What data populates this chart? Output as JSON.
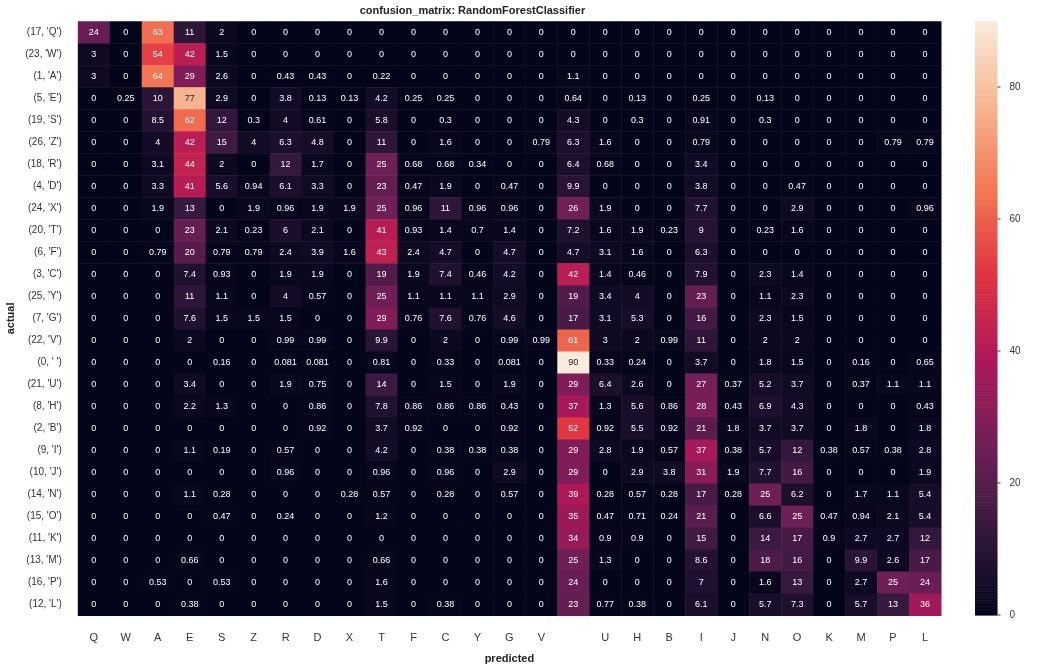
{
  "chart_data": {
    "type": "heatmap",
    "title": "confusion_matrix: RandomForestClassifier",
    "xlabel": "predicted",
    "ylabel": "actual",
    "categories": [
      "Q",
      "W",
      "A",
      "E",
      "S",
      "Z",
      "R",
      "D",
      "X",
      "T",
      "F",
      "C",
      "Y",
      "G",
      "V",
      null,
      "U",
      "H",
      "B",
      "I",
      "J",
      "N",
      "O",
      "K",
      "M",
      "P",
      "L"
    ],
    "y_categories": [
      "(17, 'Q')",
      "(23, 'W')",
      "(1, 'A')",
      "(5, 'E')",
      "(19, 'S')",
      "(26, 'Z')",
      "(18, 'R')",
      "(4, 'D')",
      "(24, 'X')",
      "(20, 'T')",
      "(6, 'F')",
      "(3, 'C')",
      "(25, 'Y')",
      "(7, 'G')",
      "(22, 'V')",
      "(0, ' ')",
      "(21, 'U')",
      "(8, 'H')",
      "(2, 'B')",
      "(9, 'I')",
      "(10, 'J')",
      "(14, 'N')",
      "(15, 'O')",
      "(11, 'K')",
      "(13, 'M')",
      "(16, 'P')",
      "(12, 'L')"
    ],
    "cells": [
      [
        24,
        0,
        63,
        11,
        2,
        0,
        0,
        0,
        0,
        0,
        0,
        0,
        0,
        0,
        0,
        0,
        0,
        0,
        0,
        0,
        0,
        0,
        0,
        0,
        0,
        0,
        0
      ],
      [
        3,
        0,
        54,
        42,
        1.5,
        0,
        0,
        0,
        0,
        0,
        0,
        0,
        0,
        0,
        0,
        0,
        0,
        0,
        0,
        0,
        0,
        0,
        0,
        0,
        0,
        0,
        0
      ],
      [
        3,
        0,
        64,
        29,
        2.6,
        0,
        0.43,
        0.43,
        0,
        0.22,
        0,
        0,
        0,
        0,
        0,
        1.1,
        0,
        0,
        0,
        0,
        0,
        0,
        0,
        0,
        0,
        0,
        0
      ],
      [
        0,
        0.25,
        10,
        77,
        2.9,
        0,
        3.8,
        0.13,
        0.13,
        4.2,
        0.25,
        0.25,
        0,
        0,
        0,
        0.64,
        0,
        0.13,
        0,
        0.25,
        0,
        0.13,
        0,
        0,
        0,
        0,
        0
      ],
      [
        0,
        0,
        8.5,
        62,
        12,
        0.3,
        4,
        0.61,
        0,
        5.8,
        0,
        0.3,
        0,
        0,
        0,
        4.3,
        0,
        0.3,
        0,
        0.91,
        0,
        0.3,
        0,
        0,
        0,
        0,
        0
      ],
      [
        0,
        0,
        4,
        42,
        15,
        4,
        6.3,
        4.8,
        0,
        11,
        0,
        1.6,
        0,
        0,
        0.79,
        6.3,
        1.6,
        0,
        0,
        0.79,
        0,
        0,
        0,
        0,
        0,
        0.79,
        0.79
      ],
      [
        0,
        0,
        3.1,
        44,
        2,
        0,
        12,
        1.7,
        0,
        25,
        0.68,
        0.68,
        0.34,
        0,
        0,
        6.4,
        0.68,
        0,
        0,
        3.4,
        0,
        0,
        0,
        0,
        0,
        0,
        0
      ],
      [
        0,
        0,
        3.3,
        41,
        5.6,
        0.94,
        6.1,
        3.3,
        0,
        23,
        0.47,
        1.9,
        0,
        0.47,
        0,
        9.9,
        0,
        0,
        0,
        3.8,
        0,
        0,
        0.47,
        0,
        0,
        0,
        0
      ],
      [
        0,
        0,
        1.9,
        13,
        0,
        1.9,
        0.96,
        1.9,
        1.9,
        25,
        0.96,
        11,
        0.96,
        0.96,
        0,
        26,
        1.9,
        0,
        0,
        7.7,
        0,
        0,
        2.9,
        0,
        0,
        0,
        0.96
      ],
      [
        0,
        0,
        0,
        23,
        2.1,
        0.23,
        6,
        2.1,
        0,
        41,
        0.93,
        1.4,
        0.7,
        1.4,
        0,
        7.2,
        1.6,
        1.9,
        0.23,
        9,
        0,
        0.23,
        1.6,
        0,
        0,
        0,
        0
      ],
      [
        0,
        0,
        0.79,
        20,
        0.79,
        0.79,
        2.4,
        3.9,
        1.6,
        43,
        2.4,
        4.7,
        0,
        4.7,
        0,
        4.7,
        3.1,
        1.6,
        0,
        6.3,
        0,
        0,
        0,
        0,
        0,
        0,
        0
      ],
      [
        0,
        0,
        0,
        7.4,
        0.93,
        0,
        1.9,
        1.9,
        0,
        19,
        1.9,
        7.4,
        0.46,
        4.2,
        0,
        42,
        1.4,
        0.46,
        0,
        7.9,
        0,
        2.3,
        1.4,
        0,
        0,
        0,
        0
      ],
      [
        0,
        0,
        0,
        11,
        1.1,
        0,
        4,
        0.57,
        0,
        25,
        1.1,
        1.1,
        1.1,
        2.9,
        0,
        19,
        3.4,
        4,
        0,
        23,
        0,
        1.1,
        2.3,
        0,
        0,
        0,
        0
      ],
      [
        0,
        0,
        0,
        7.6,
        1.5,
        1.5,
        1.5,
        0,
        0,
        29,
        0.76,
        7.6,
        0.76,
        4.6,
        0,
        17,
        3.1,
        5.3,
        0,
        16,
        0,
        2.3,
        1.5,
        0,
        0,
        0,
        0
      ],
      [
        0,
        0,
        0,
        2,
        0,
        0,
        0.99,
        0.99,
        0,
        9.9,
        0,
        2,
        0,
        0.99,
        0.99,
        61,
        3,
        2,
        0.99,
        11,
        0,
        2,
        2,
        0,
        0,
        0,
        0
      ],
      [
        0,
        0,
        0,
        0,
        0.16,
        0,
        0.081,
        0.081,
        0,
        0.81,
        0,
        0.33,
        0,
        0.081,
        0,
        90,
        0.33,
        0.24,
        0,
        3.7,
        0,
        1.8,
        1.5,
        0,
        0.16,
        0,
        0.65
      ],
      [
        0,
        0,
        0,
        3.4,
        0,
        0,
        1.9,
        0.75,
        0,
        14,
        0,
        1.5,
        0,
        1.9,
        0,
        29,
        6.4,
        2.6,
        0,
        27,
        0.37,
        5.2,
        3.7,
        0,
        0.37,
        1.1,
        1.1
      ],
      [
        0,
        0,
        0,
        2.2,
        1.3,
        0,
        0,
        0.86,
        0,
        7.8,
        0.86,
        0.86,
        0.86,
        0.43,
        0,
        37,
        1.3,
        5.6,
        0.86,
        28,
        0.43,
        6.9,
        4.3,
        0,
        0,
        0,
        0.43
      ],
      [
        0,
        0,
        0,
        0,
        0,
        0,
        0,
        0.92,
        0,
        3.7,
        0.92,
        0,
        0,
        0.92,
        0,
        52,
        0.92,
        5.5,
        0.92,
        21,
        1.8,
        3.7,
        3.7,
        0,
        1.8,
        0,
        1.8
      ],
      [
        0,
        0,
        0,
        1.1,
        0.19,
        0,
        0.57,
        0,
        0,
        4.2,
        0,
        0.38,
        0.38,
        0.38,
        0,
        29,
        2.8,
        1.9,
        0.57,
        37,
        0.38,
        5.7,
        12,
        0.38,
        0.57,
        0.38,
        2.8
      ],
      [
        0,
        0,
        0,
        0,
        0,
        0,
        0.96,
        0,
        0,
        0.96,
        0,
        0.96,
        0,
        2.9,
        0,
        29,
        0,
        2.9,
        3.8,
        31,
        1.9,
        7.7,
        16,
        0,
        0,
        0,
        1.9
      ],
      [
        0,
        0,
        0,
        1.1,
        0.28,
        0,
        0,
        0,
        0.28,
        0.57,
        0,
        0.28,
        0,
        0.57,
        0,
        39,
        0.28,
        0.57,
        0.28,
        17,
        0.28,
        25,
        6.2,
        0,
        1.7,
        1.1,
        5.4
      ],
      [
        0,
        0,
        0,
        0,
        0.47,
        0,
        0.24,
        0,
        0,
        1.2,
        0,
        0,
        0,
        0,
        0,
        35,
        0.47,
        0.71,
        0.24,
        21,
        0,
        6.6,
        25,
        0.47,
        0.94,
        2.1,
        5.4
      ],
      [
        0,
        0,
        0,
        0,
        0,
        0,
        0,
        0,
        0,
        0,
        0,
        0,
        0,
        0,
        0,
        34,
        0.9,
        0.9,
        0,
        15,
        0,
        14,
        17,
        0.9,
        2.7,
        2.7,
        12
      ],
      [
        0,
        0,
        0,
        0.66,
        0,
        0,
        0,
        0,
        0,
        0.66,
        0,
        0,
        0,
        0,
        0,
        25,
        1.3,
        0,
        0,
        8.6,
        0,
        18,
        16,
        0,
        9.9,
        2.6,
        17
      ],
      [
        0,
        0,
        0.53,
        0,
        0.53,
        0,
        0,
        0,
        0,
        1.6,
        0,
        0,
        0,
        0,
        0,
        24,
        0,
        0,
        0,
        7,
        0,
        1.6,
        13,
        0,
        2.7,
        25,
        24
      ],
      [
        0,
        0,
        0,
        0.38,
        0,
        0,
        0,
        0,
        0,
        1.5,
        0,
        0.38,
        0,
        0,
        0,
        23,
        0.77,
        0.38,
        0,
        6.1,
        0,
        5.7,
        7.3,
        0,
        5.7,
        13,
        36
      ]
    ],
    "clim": [
      0,
      90
    ],
    "cticks": [
      0,
      20,
      40,
      60,
      80
    ],
    "data_labels": true
  }
}
